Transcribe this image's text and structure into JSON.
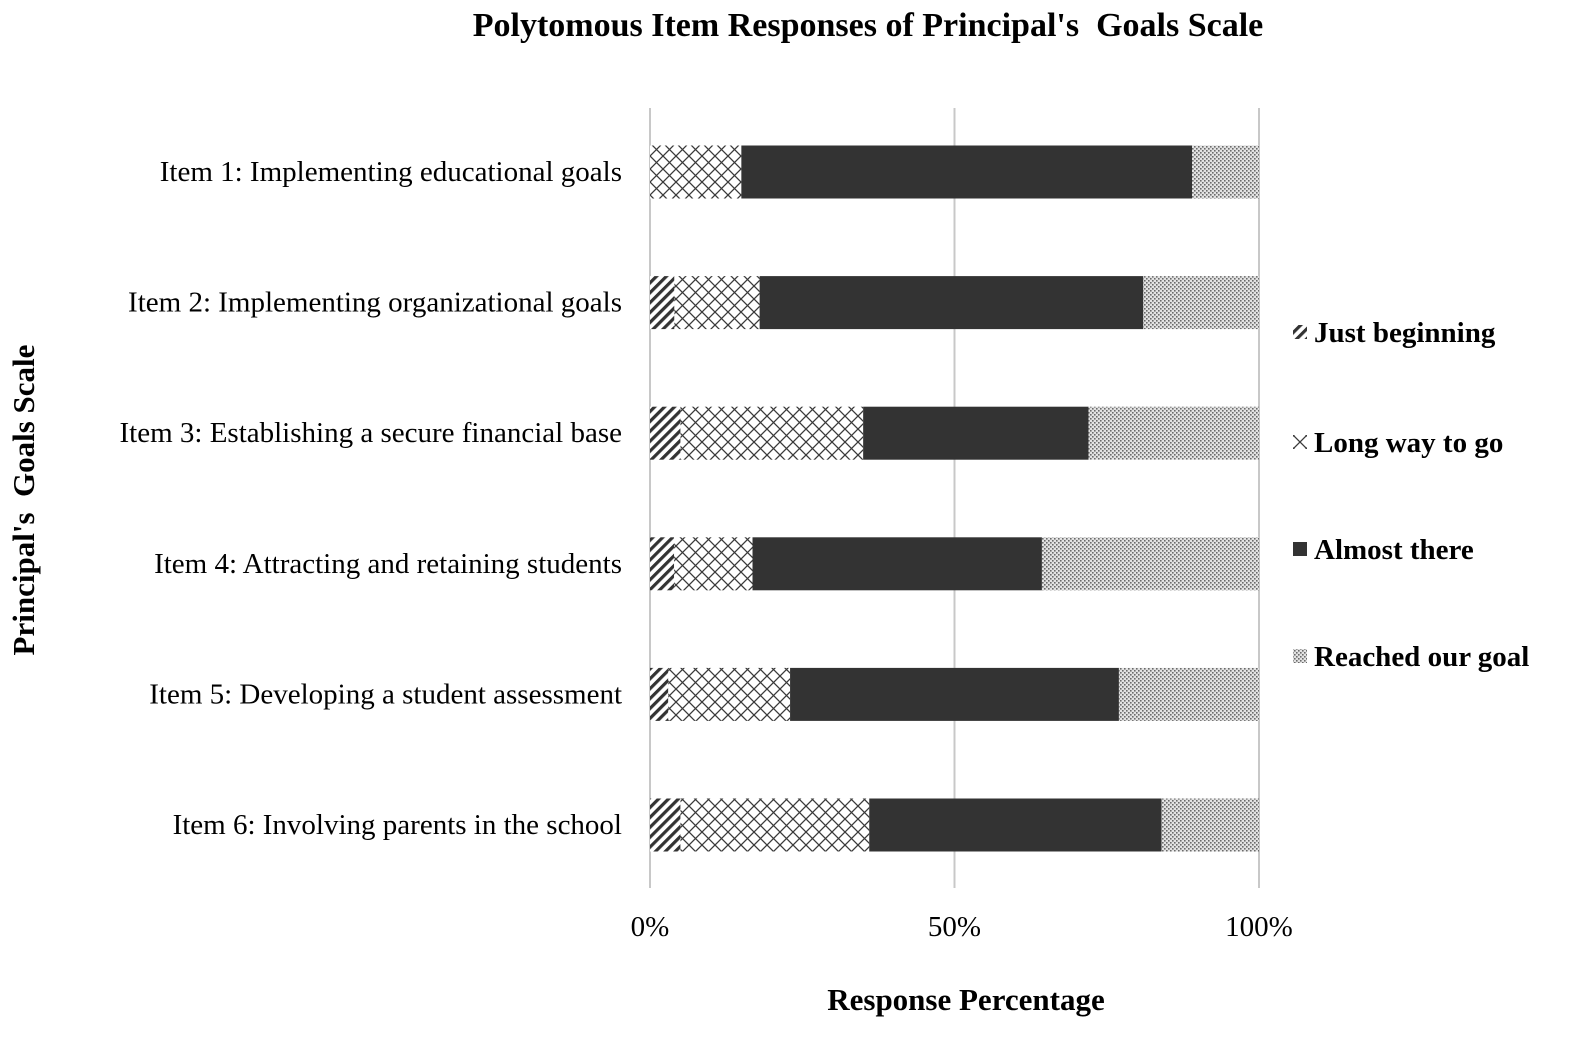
{
  "chart_data": {
    "type": "bar",
    "orientation": "horizontal",
    "stacked": "percent",
    "title": "Polytomous Item Responses of Principal's  Goals Scale",
    "xlabel": "Response Percentage",
    "ylabel": "Principal's  Goals Scale",
    "xlim": [
      0,
      100
    ],
    "x_ticks": [
      "0%",
      "50%",
      "100%"
    ],
    "x_tick_values": [
      0,
      50,
      100
    ],
    "grid": true,
    "legend_position": "right",
    "categories": [
      "Item 1: Implementing educational goals",
      "Item 2: Implementing organizational  goals",
      "Item 3: Establishing a secure financial base",
      "Item 4: Attracting and retaining students",
      "Item 5: Developing a student assessment",
      "Item 6: Involving parents in the school"
    ],
    "series": [
      {
        "name": "Just beginning",
        "pattern": "diagonal-hatch",
        "color": "#333333",
        "values": [
          0,
          4,
          5,
          4,
          3,
          5
        ]
      },
      {
        "name": "Long way to go",
        "pattern": "crosshatch",
        "color": "#555555",
        "values": [
          15,
          14,
          30,
          13,
          20,
          31
        ]
      },
      {
        "name": "Almost there",
        "pattern": "solid",
        "color": "#333333",
        "values": [
          74,
          63,
          37,
          48,
          54,
          48
        ]
      },
      {
        "name": "Reached our goal",
        "pattern": "dots",
        "color": "#999999",
        "values": [
          11,
          19,
          28,
          36,
          23,
          16
        ]
      }
    ]
  }
}
